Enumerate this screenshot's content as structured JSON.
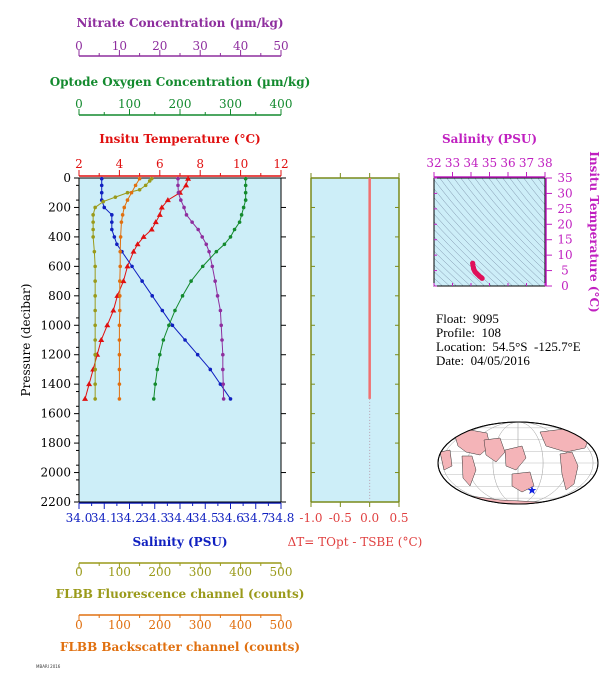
{
  "float_info": {
    "float": "Float:  9095",
    "profile": "Profile:  108",
    "location": "Location:  54.5°S  -125.7°E",
    "date": "Date:  04/05/2016"
  },
  "footer_text": "MBARI 2016",
  "chart_data": [
    {
      "type": "line",
      "panel": "main-profile",
      "ylabel": "Pressure (decibar)",
      "ylim": [
        2200,
        0
      ],
      "yticks": [
        "0",
        "200",
        "400",
        "600",
        "800",
        "1000",
        "1200",
        "1400",
        "1600",
        "1800",
        "2000",
        "2200"
      ],
      "grid": false,
      "axes": [
        {
          "id": "nitrate",
          "label": "Nitrate Concentration (µm/kg)",
          "color": "#8e2e9e",
          "range": [
            0,
            50
          ],
          "ticks": [
            "0",
            "10",
            "20",
            "30",
            "40",
            "50"
          ]
        },
        {
          "id": "oxygen",
          "label": "Optode Oxygen Concentration (µm/kg)",
          "color": "#138a2e",
          "range": [
            0,
            400
          ],
          "ticks": [
            "0",
            "100",
            "200",
            "300",
            "400"
          ]
        },
        {
          "id": "temperature",
          "label": "Insitu Temperature (°C)",
          "color": "#e01010",
          "range": [
            2,
            12
          ],
          "ticks": [
            "2",
            "4",
            "6",
            "8",
            "10",
            "12"
          ]
        },
        {
          "id": "salinity",
          "label": "Salinity (PSU)",
          "color": "#1020c0",
          "range": [
            34.0,
            34.8
          ],
          "ticks": [
            "34.0",
            "34.1",
            "34.2",
            "34.3",
            "34.4",
            "34.5",
            "34.6",
            "34.7",
            "34.8"
          ]
        },
        {
          "id": "fluorescence",
          "label": "FLBB Fluorescence channel (counts)",
          "color": "#9a9a1a",
          "range": [
            0,
            500
          ],
          "ticks": [
            "0",
            "100",
            "200",
            "300",
            "400",
            "500"
          ]
        },
        {
          "id": "backscatter",
          "label": "FLBB Backscatter channel (counts)",
          "color": "#e07010",
          "range": [
            0,
            500
          ],
          "ticks": [
            "0",
            "100",
            "200",
            "300",
            "400",
            "500"
          ]
        }
      ],
      "series": [
        {
          "axis": "temperature",
          "color": "#e01010",
          "marker": "triangle",
          "p": [
            5,
            50,
            100,
            150,
            200,
            250,
            300,
            350,
            400,
            450,
            500,
            600,
            700,
            800,
            900,
            1000,
            1100,
            1200,
            1300,
            1400,
            1500
          ],
          "v": [
            7.4,
            7.3,
            7.0,
            6.4,
            6.1,
            6.0,
            5.8,
            5.6,
            5.2,
            4.9,
            4.7,
            4.4,
            4.2,
            3.9,
            3.7,
            3.4,
            3.1,
            2.9,
            2.7,
            2.5,
            2.3
          ]
        },
        {
          "axis": "salinity",
          "color": "#1020c0",
          "marker": "circle",
          "p": [
            5,
            50,
            100,
            150,
            200,
            250,
            300,
            350,
            400,
            450,
            500,
            600,
            700,
            800,
            900,
            1000,
            1100,
            1200,
            1300,
            1400,
            1500
          ],
          "v": [
            34.09,
            34.09,
            34.09,
            34.09,
            34.1,
            34.13,
            34.13,
            34.13,
            34.14,
            34.15,
            34.17,
            34.21,
            34.25,
            34.29,
            34.33,
            34.37,
            34.42,
            34.47,
            34.52,
            34.56,
            34.6
          ]
        },
        {
          "axis": "nitrate",
          "color": "#8e2e9e",
          "marker": "circle",
          "p": [
            5,
            50,
            100,
            150,
            200,
            250,
            300,
            350,
            400,
            450,
            500,
            600,
            700,
            800,
            900,
            1000,
            1100,
            1200,
            1300,
            1400,
            1500
          ],
          "v": [
            24.5,
            24.5,
            24.6,
            25.2,
            26.0,
            26.6,
            28.0,
            29.5,
            30.5,
            31.5,
            32.2,
            33.0,
            33.7,
            34.3,
            35.0,
            35.2,
            35.4,
            35.6,
            35.6,
            35.7,
            35.8
          ]
        },
        {
          "axis": "oxygen",
          "color": "#138a2e",
          "marker": "circle",
          "p": [
            5,
            50,
            100,
            150,
            200,
            250,
            300,
            350,
            400,
            450,
            500,
            600,
            700,
            800,
            900,
            1000,
            1100,
            1200,
            1300,
            1400,
            1500
          ],
          "v": [
            330,
            330,
            330,
            330,
            326,
            322,
            318,
            308,
            300,
            288,
            272,
            245,
            222,
            205,
            190,
            178,
            167,
            160,
            155,
            151,
            148
          ]
        },
        {
          "axis": "fluorescence",
          "color": "#9a9a1a",
          "marker": "circle",
          "p": [
            5,
            20,
            50,
            80,
            100,
            130,
            160,
            200,
            250,
            300,
            350,
            400,
            500,
            600,
            700,
            800,
            900,
            1000,
            1100,
            1200,
            1300,
            1400,
            1500
          ],
          "v": [
            180,
            175,
            165,
            150,
            120,
            90,
            60,
            40,
            35,
            35,
            35,
            35,
            38,
            40,
            40,
            40,
            40,
            40,
            40,
            40,
            40,
            40,
            40
          ]
        },
        {
          "axis": "backscatter",
          "color": "#e07010",
          "marker": "circle",
          "p": [
            5,
            50,
            100,
            150,
            200,
            250,
            300,
            400,
            500,
            600,
            700,
            800,
            900,
            1000,
            1100,
            1200,
            1300,
            1400,
            1500
          ],
          "v": [
            150,
            140,
            130,
            120,
            112,
            108,
            105,
            103,
            102,
            102,
            101,
            101,
            101,
            100,
            100,
            100,
            100,
            100,
            100
          ]
        }
      ]
    },
    {
      "type": "line",
      "panel": "delta-t",
      "xlabel": "ΔT= TOpt - TSBE (°C)",
      "xlim": [
        -1.0,
        0.5
      ],
      "xticks": [
        "-1.0",
        "-0.5",
        "0.0",
        "0.5"
      ],
      "ylim": [
        2200,
        0
      ],
      "series": [
        {
          "color": "#f07070",
          "p": [
            0,
            100,
            200,
            300,
            400,
            500,
            600,
            700,
            800,
            900,
            1000,
            1100,
            1200,
            1300,
            1400,
            1500
          ],
          "v": [
            0,
            0,
            0,
            0,
            0,
            0,
            0,
            0,
            0,
            0,
            0,
            0,
            0,
            0,
            0,
            0
          ]
        }
      ]
    },
    {
      "type": "scatter",
      "panel": "ts-diagram",
      "title": "Salinity (PSU)",
      "xlabel": "Salinity (PSU)",
      "ylabel": "Insitu Temperature (°C)",
      "xlim": [
        32,
        38
      ],
      "xticks": [
        "32",
        "33",
        "34",
        "35",
        "36",
        "37",
        "38"
      ],
      "ylim": [
        0,
        35
      ],
      "yticks": [
        "0",
        "5",
        "10",
        "15",
        "20",
        "25",
        "30",
        "35"
      ],
      "series": [
        {
          "color": "#e0105a",
          "s": [
            34.09,
            34.1,
            34.13,
            34.14,
            34.17,
            34.21,
            34.25,
            34.29,
            34.33,
            34.37,
            34.42,
            34.47,
            34.52,
            34.56,
            34.6
          ],
          "t": [
            7.4,
            6.8,
            6.0,
            5.6,
            5.2,
            4.7,
            4.4,
            4.2,
            3.9,
            3.7,
            3.4,
            3.1,
            2.9,
            2.7,
            2.5
          ]
        }
      ]
    }
  ]
}
